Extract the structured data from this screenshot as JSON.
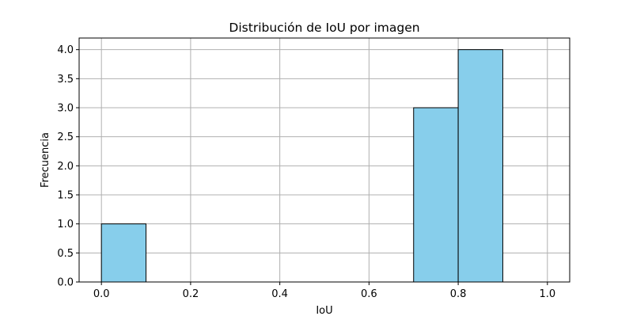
{
  "chart_data": {
    "type": "bar",
    "title": "Distribución de IoU por imagen",
    "xlabel": "IoU",
    "ylabel": "Frecuencia",
    "xlim": [
      -0.05,
      1.05
    ],
    "ylim": [
      0,
      4.2
    ],
    "xticks": [
      0.0,
      0.2,
      0.4,
      0.6,
      0.8,
      1.0
    ],
    "xtick_labels": [
      "0.0",
      "0.2",
      "0.4",
      "0.6",
      "0.8",
      "1.0"
    ],
    "yticks": [
      0.0,
      0.5,
      1.0,
      1.5,
      2.0,
      2.5,
      3.0,
      3.5,
      4.0
    ],
    "ytick_labels": [
      "0.0",
      "0.5",
      "1.0",
      "1.5",
      "2.0",
      "2.5",
      "3.0",
      "3.5",
      "4.0"
    ],
    "bins": [
      {
        "start": 0.0,
        "end": 0.1,
        "count": 1
      },
      {
        "start": 0.1,
        "end": 0.2,
        "count": 0
      },
      {
        "start": 0.2,
        "end": 0.3,
        "count": 0
      },
      {
        "start": 0.3,
        "end": 0.4,
        "count": 0
      },
      {
        "start": 0.4,
        "end": 0.5,
        "count": 0
      },
      {
        "start": 0.5,
        "end": 0.6,
        "count": 0
      },
      {
        "start": 0.6,
        "end": 0.7,
        "count": 0
      },
      {
        "start": 0.7,
        "end": 0.8,
        "count": 3
      },
      {
        "start": 0.8,
        "end": 0.9,
        "count": 4
      },
      {
        "start": 0.9,
        "end": 1.0,
        "count": 0
      }
    ],
    "grid": true,
    "legend": "none",
    "colors": {
      "bar_fill": "#87ceeb",
      "bar_edge": "#000000",
      "grid": "#b0b0b0",
      "axis": "#000000"
    }
  }
}
